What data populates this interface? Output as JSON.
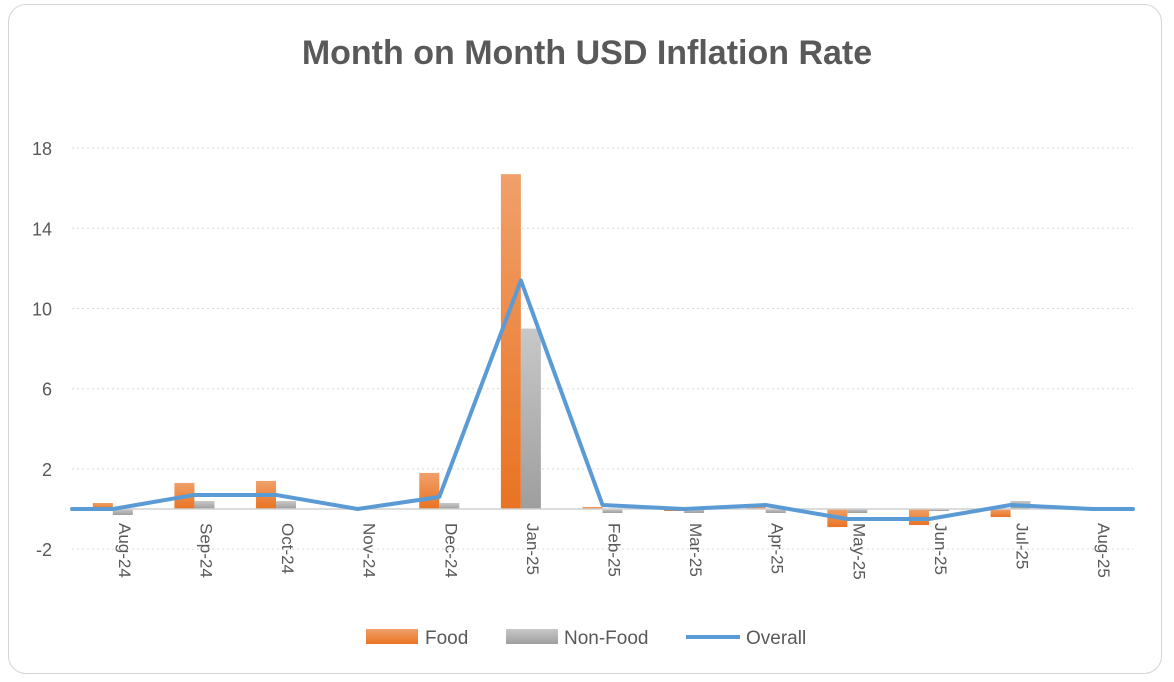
{
  "chart_data": {
    "type": "bar",
    "title": "Month on Month USD Inflation Rate",
    "categories": [
      "Aug-24",
      "Sep-24",
      "Oct-24",
      "Nov-24",
      "Dec-24",
      "Jan-25",
      "Feb-25",
      "Mar-25",
      "Apr-25",
      "May-25",
      "Jun-25",
      "Jul-25",
      "Aug-25"
    ],
    "yticks": [
      "-2",
      "2",
      "6",
      "10",
      "14",
      "18"
    ],
    "ylim": [
      -2,
      18
    ],
    "grid": true,
    "legend_position": "bottom",
    "series": [
      {
        "name": "Food",
        "kind": "bar",
        "color": "#ED7D31",
        "values": [
          0.3,
          1.3,
          1.4,
          0.0,
          1.8,
          16.7,
          0.1,
          -0.1,
          0.1,
          -0.9,
          -0.8,
          -0.4,
          0.0
        ]
      },
      {
        "name": "Non-Food",
        "kind": "bar",
        "color": "#A5A5A5",
        "values": [
          -0.3,
          0.4,
          0.4,
          0.0,
          0.3,
          9.0,
          -0.2,
          -0.2,
          -0.2,
          -0.2,
          -0.1,
          0.4,
          0.0
        ]
      },
      {
        "name": "Overall",
        "kind": "line",
        "color": "#5B9BD5",
        "values": [
          0.0,
          0.7,
          0.7,
          0.0,
          0.6,
          11.4,
          0.2,
          0.0,
          0.2,
          -0.5,
          -0.5,
          0.2,
          0.0
        ]
      }
    ]
  }
}
